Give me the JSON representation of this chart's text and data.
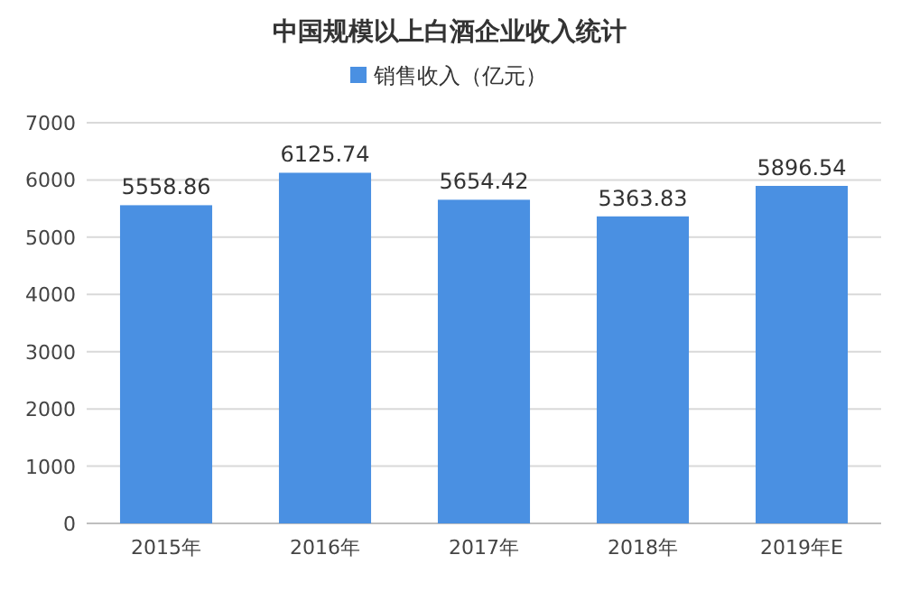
{
  "chart_data": {
    "type": "bar",
    "title": "中国规模以上白酒企业收入统计",
    "categories": [
      "2015年",
      "2016年",
      "2017年",
      "2018年",
      "2019年E"
    ],
    "series": [
      {
        "name": "销售收入（亿元）",
        "color": "#4a90e2",
        "values": [
          5558.86,
          6125.74,
          5654.42,
          5363.83,
          5896.54
        ]
      }
    ],
    "ylim": [
      0,
      7000
    ],
    "yticks": [
      0,
      1000,
      2000,
      3000,
      4000,
      5000,
      6000,
      7000
    ],
    "grid": "y",
    "legend": "top",
    "data_labels": true
  }
}
